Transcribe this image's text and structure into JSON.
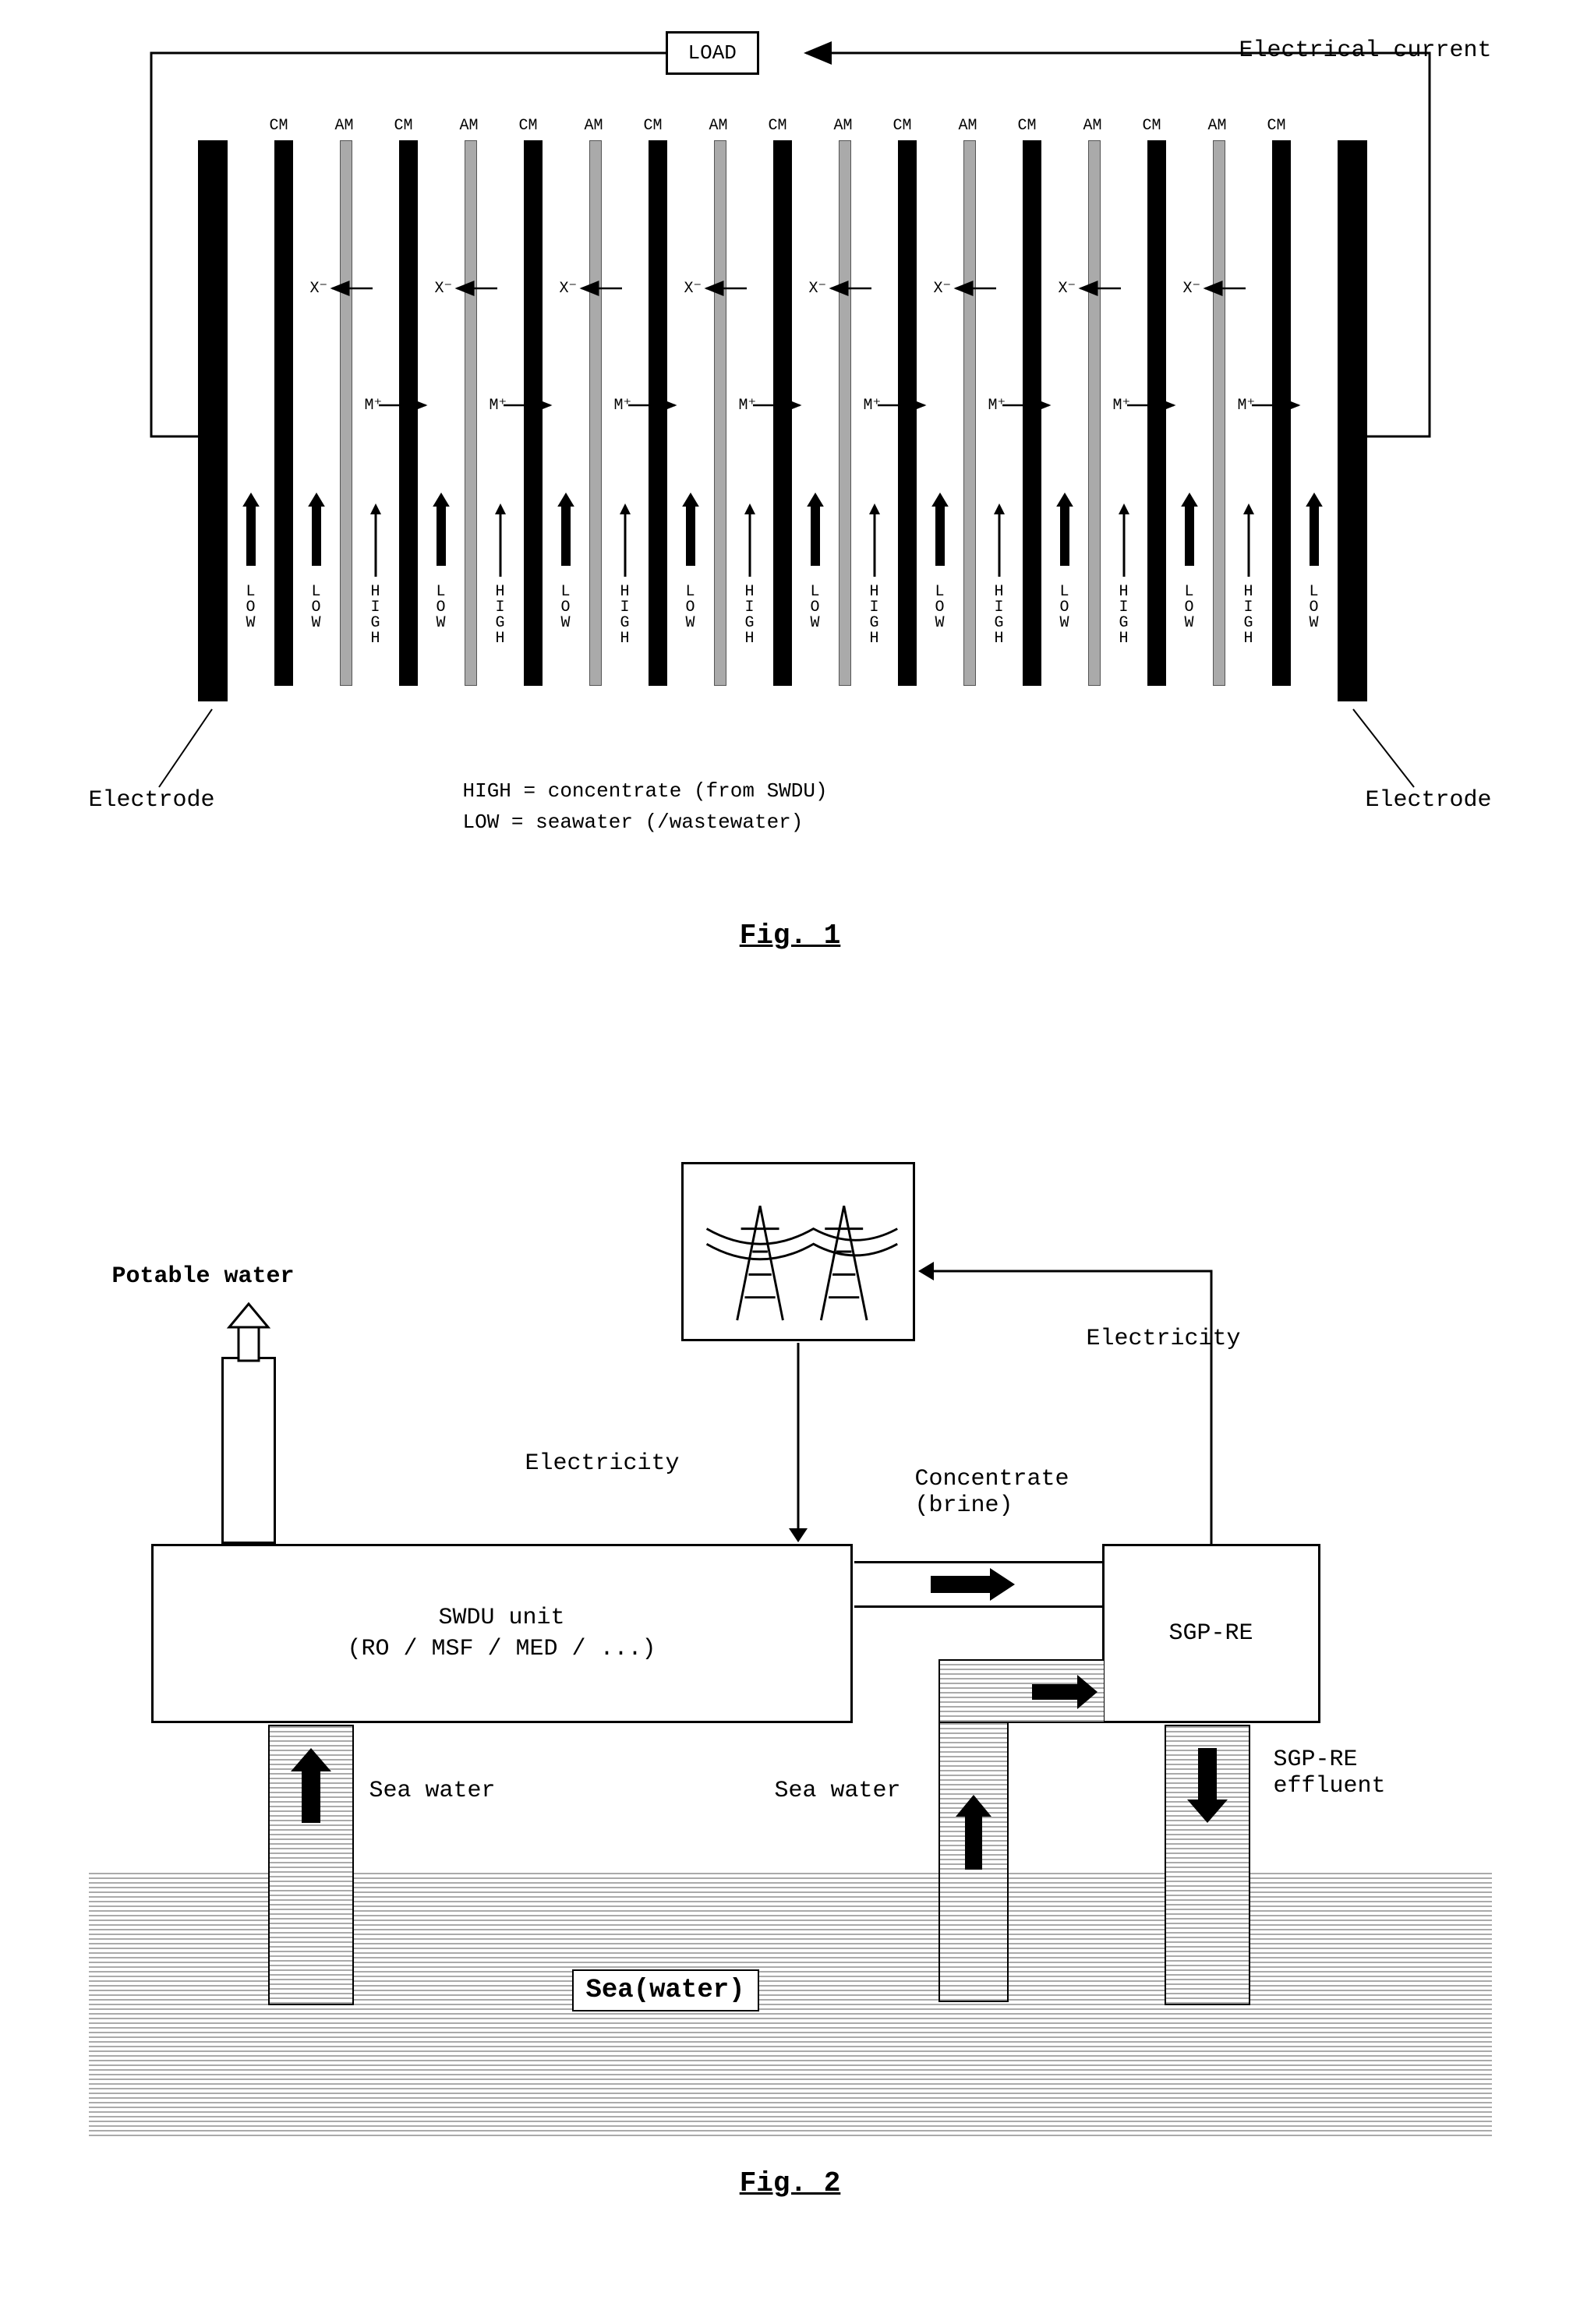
{
  "fig1": {
    "load_label": "LOAD",
    "electrical_current": "Electrical current",
    "electrode_left": "Electrode",
    "electrode_right": "Electrode",
    "cm_label": "CM",
    "am_label": "AM",
    "cation": "M⁺",
    "anion": "X⁻",
    "low_word": "LOW",
    "high_word": "HIGH",
    "legend_high": "HIGH = concentrate (from SWDU)",
    "legend_low": "LOW = seawater (/wastewater)",
    "caption": "Fig. 1",
    "num_cell_pairs": 8,
    "colors": {
      "cm": "#000000",
      "am": "#aaaaaa",
      "electrode": "#000000",
      "bg": "#ffffff",
      "text": "#000000"
    }
  },
  "fig2": {
    "potable_water": "Potable water",
    "electricity": "Electricity",
    "concentrate": "Concentrate\n(brine)",
    "swdu_label": "SWDU unit\n(RO / MSF / MED / ...)",
    "sgp_label": "SGP-RE",
    "sea_water": "Sea water",
    "sea_label": "Sea(water)",
    "sgp_effluent": "SGP-RE\neffluent",
    "caption": "Fig. 2",
    "colors": {
      "box_border": "#000000",
      "sea_pattern": "#aaaaaa",
      "bg": "#ffffff",
      "text": "#000000"
    }
  }
}
